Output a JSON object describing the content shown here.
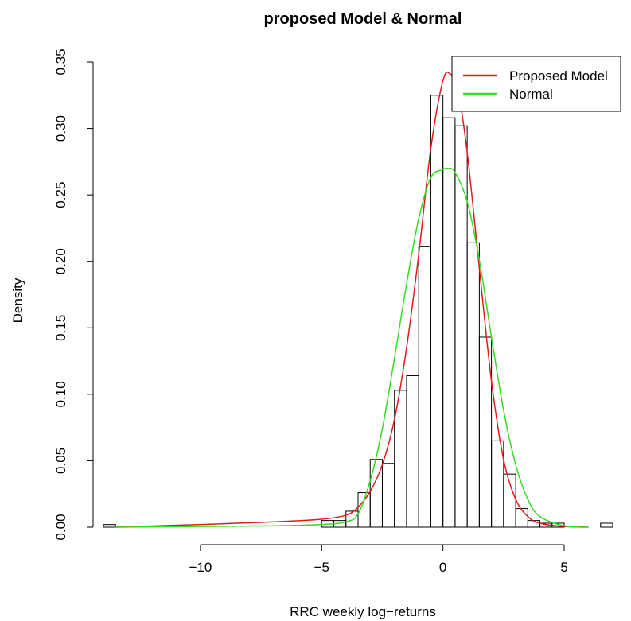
{
  "chart_data": {
    "type": "histogram",
    "title": "proposed Model & Normal",
    "xlabel": "RRC weekly log−returns",
    "ylabel": "Density",
    "xlim": [
      -14,
      7
    ],
    "ylim": [
      0,
      0.35
    ],
    "x_ticks": [
      -10,
      -5,
      0,
      5
    ],
    "x_tick_labels": [
      "−10",
      "−5",
      "0",
      "5"
    ],
    "y_ticks": [
      0,
      0.05,
      0.1,
      0.15,
      0.2,
      0.25,
      0.3,
      0.35
    ],
    "y_tick_labels": [
      "0.00",
      "0.05",
      "0.10",
      "0.15",
      "0.20",
      "0.25",
      "0.30",
      "0.35"
    ],
    "grid": false,
    "legend_position": "top-right",
    "histogram": {
      "bin_width": 0.5,
      "bars": [
        {
          "x0": -14.0,
          "density": 0.002
        },
        {
          "x0": -5.0,
          "density": 0.005
        },
        {
          "x0": -4.5,
          "density": 0.005
        },
        {
          "x0": -4.0,
          "density": 0.012
        },
        {
          "x0": -3.5,
          "density": 0.026
        },
        {
          "x0": -3.0,
          "density": 0.051
        },
        {
          "x0": -2.5,
          "density": 0.048
        },
        {
          "x0": -2.0,
          "density": 0.103
        },
        {
          "x0": -1.5,
          "density": 0.114
        },
        {
          "x0": -1.0,
          "density": 0.211
        },
        {
          "x0": -0.5,
          "density": 0.325
        },
        {
          "x0": 0.0,
          "density": 0.308
        },
        {
          "x0": 0.5,
          "density": 0.302
        },
        {
          "x0": 1.0,
          "density": 0.214
        },
        {
          "x0": 1.5,
          "density": 0.143
        },
        {
          "x0": 2.0,
          "density": 0.065
        },
        {
          "x0": 2.5,
          "density": 0.04
        },
        {
          "x0": 3.0,
          "density": 0.014
        },
        {
          "x0": 3.5,
          "density": 0.005
        },
        {
          "x0": 4.0,
          "density": 0.003
        },
        {
          "x0": 4.5,
          "density": 0.003
        },
        {
          "x0": 6.5,
          "density": 0.003
        }
      ]
    },
    "series": [
      {
        "name": "Proposed Model",
        "color": "#e31a1c",
        "x": [
          -13.5,
          -10,
          -7,
          -5,
          -4,
          -3.5,
          -3,
          -2.5,
          -2,
          -1.5,
          -1,
          -0.5,
          0,
          0.3,
          0.6,
          1,
          1.5,
          2,
          2.5,
          3,
          3.5,
          4,
          5,
          6
        ],
        "y": [
          0.0,
          0.002,
          0.004,
          0.006,
          0.009,
          0.015,
          0.027,
          0.047,
          0.081,
          0.135,
          0.205,
          0.285,
          0.336,
          0.341,
          0.33,
          0.282,
          0.195,
          0.11,
          0.051,
          0.021,
          0.008,
          0.003,
          0.0005,
          0.0
        ]
      },
      {
        "name": "Normal",
        "color": "#33dd22",
        "x": [
          -13.5,
          -10,
          -7,
          -5,
          -4,
          -3.5,
          -3,
          -2.5,
          -2,
          -1.5,
          -1,
          -0.5,
          0,
          0.2,
          0.5,
          1,
          1.5,
          2,
          2.5,
          3,
          3.5,
          4,
          5,
          6
        ],
        "y": [
          0.0,
          0.0005,
          0.001,
          0.002,
          0.004,
          0.01,
          0.035,
          0.074,
          0.127,
          0.183,
          0.232,
          0.263,
          0.269,
          0.27,
          0.267,
          0.245,
          0.201,
          0.143,
          0.088,
          0.047,
          0.021,
          0.008,
          0.001,
          0.0
        ]
      }
    ]
  }
}
